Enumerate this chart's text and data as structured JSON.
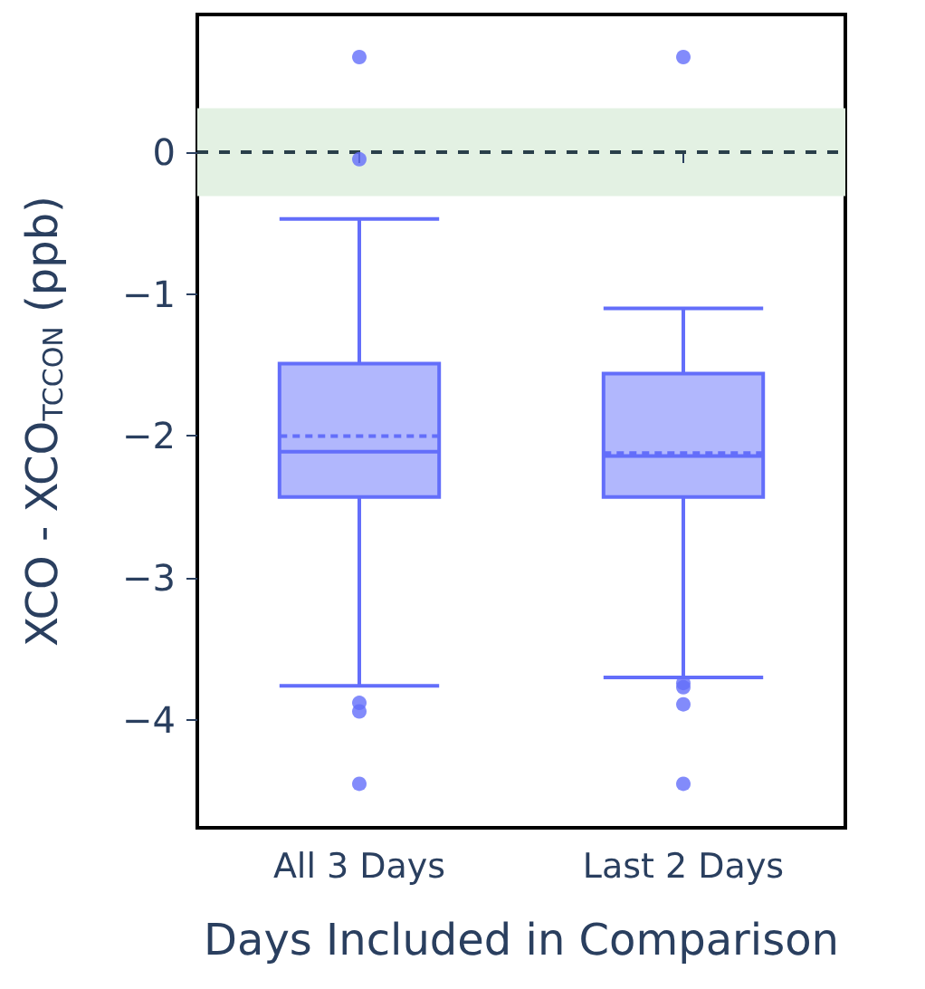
{
  "chart_data": {
    "type": "box",
    "xlabel": "Days Included in Comparison",
    "ylabel": "XCO - XCO$_{TCCON}$ (ppb)",
    "categories": [
      "All 3 Days",
      "Last 2 Days"
    ],
    "series": [
      {
        "color": "#636efa",
        "boxes": [
          {
            "low": -3.76,
            "q1": -2.43,
            "median": -2.11,
            "q3": -1.49,
            "high": -0.47,
            "mean": -2.0,
            "outliers": [
              0.67,
              -0.05,
              -3.88,
              -3.94,
              -4.45
            ]
          },
          {
            "low": -3.7,
            "q1": -2.43,
            "median": -2.14,
            "q3": -1.56,
            "high": -1.1,
            "mean": -2.12,
            "outliers": [
              0.67,
              -3.74,
              -3.77,
              -3.89,
              -4.45
            ]
          }
        ]
      }
    ],
    "ylim": [
      -4.76,
      0.97
    ],
    "yticks": [
      {
        "value": -4,
        "label": "−4"
      },
      {
        "value": -3,
        "label": "−3"
      },
      {
        "value": -2,
        "label": "−2"
      },
      {
        "value": -1,
        "label": "−1"
      },
      0
    ],
    "grid": false,
    "ref_lines": [
      {
        "axis": "y",
        "value": 0,
        "label": null,
        "color": "#2a3f4a",
        "line_style": "dashed"
      }
    ],
    "bands": [
      {
        "axis": "y",
        "from": -0.31,
        "to": 0.31,
        "label": null,
        "color": "#e3f1e3"
      }
    ]
  }
}
